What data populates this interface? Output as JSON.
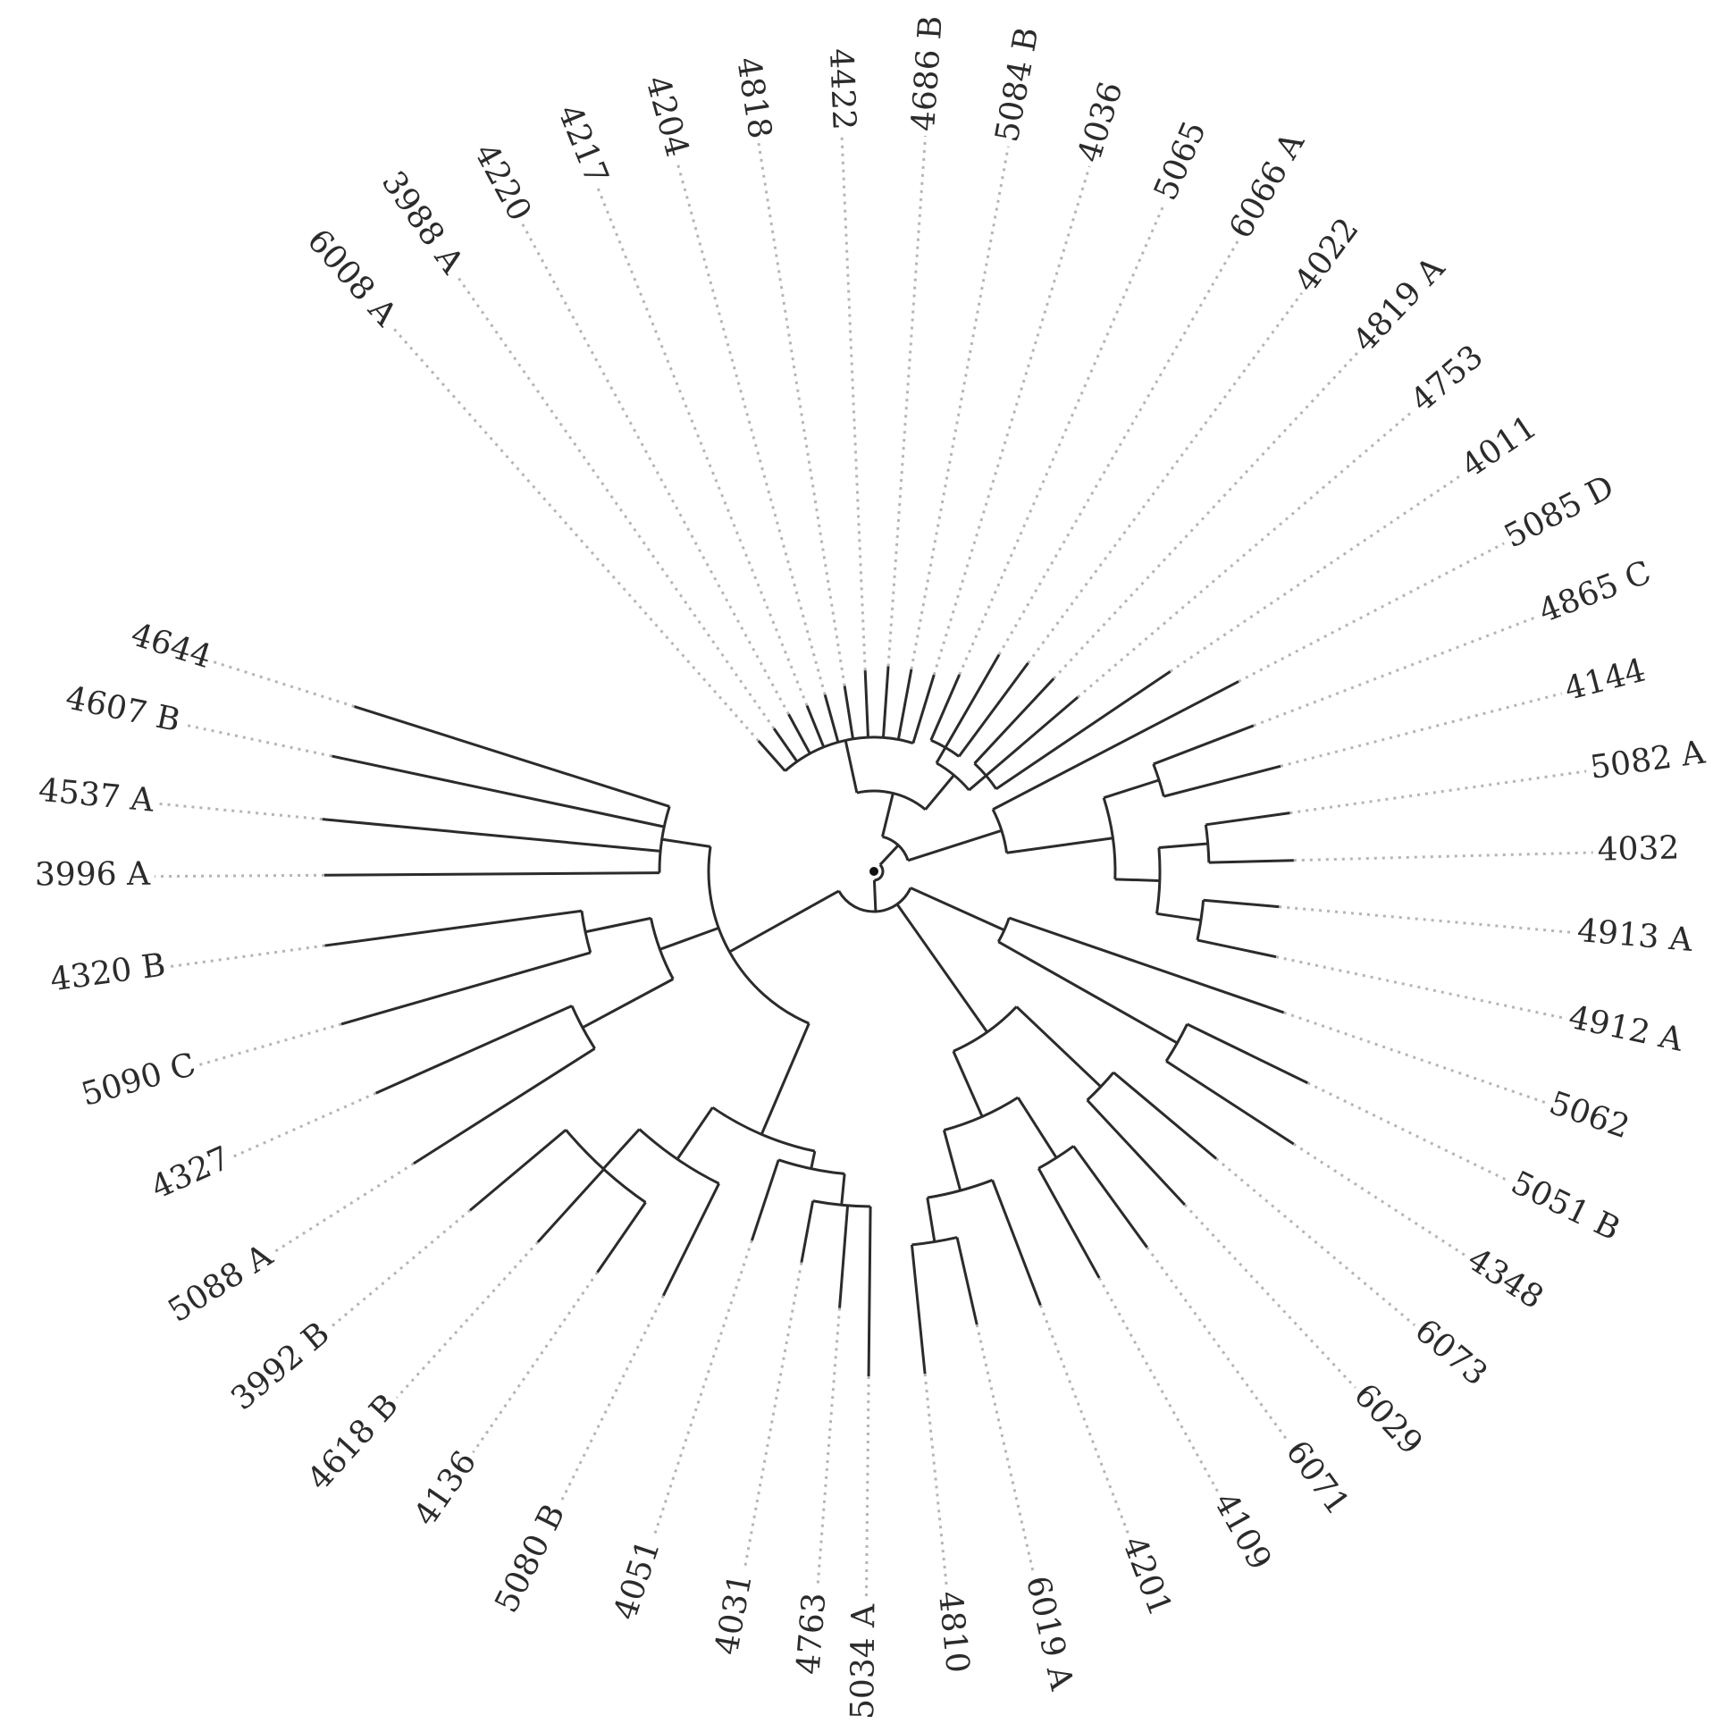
{
  "tree": {
    "type": "circular-dendrogram",
    "leaves": [
      {
        "label": "4607 B"
      },
      {
        "label": "4644"
      },
      {
        "label": "4537 A"
      },
      {
        "label": "3996 A"
      },
      {
        "label": "4320 B"
      },
      {
        "label": "5090 C"
      },
      {
        "label": "4327"
      },
      {
        "label": "5088 A"
      },
      {
        "label": "3992 B"
      },
      {
        "label": "4618 B"
      },
      {
        "label": "4136"
      },
      {
        "label": "5080 B"
      },
      {
        "label": "4051"
      },
      {
        "label": "4031"
      },
      {
        "label": "4763"
      },
      {
        "label": "5034 A"
      },
      {
        "label": "4810"
      },
      {
        "label": "6019 A"
      },
      {
        "label": "4201"
      },
      {
        "label": "4109"
      },
      {
        "label": "6071"
      },
      {
        "label": "6029"
      },
      {
        "label": "6073"
      },
      {
        "label": "4348"
      },
      {
        "label": "5051 B"
      },
      {
        "label": "5062"
      },
      {
        "label": "4912 A"
      },
      {
        "label": "4913 A"
      },
      {
        "label": "4032"
      },
      {
        "label": "5082 A"
      },
      {
        "label": "4144"
      },
      {
        "label": "4865 C"
      },
      {
        "label": "5085 D"
      },
      {
        "label": "4011"
      },
      {
        "label": "4753"
      },
      {
        "label": "4819 A"
      },
      {
        "label": "4022"
      },
      {
        "label": "6066 A"
      },
      {
        "label": "5065"
      },
      {
        "label": "4036"
      },
      {
        "label": "5084 B"
      },
      {
        "label": "4686 B"
      },
      {
        "label": "4422"
      },
      {
        "label": "4818"
      },
      {
        "label": "4204"
      },
      {
        "label": "4217"
      },
      {
        "label": "4220"
      },
      {
        "label": "3988 A"
      },
      {
        "label": "6008 A"
      }
    ]
  }
}
